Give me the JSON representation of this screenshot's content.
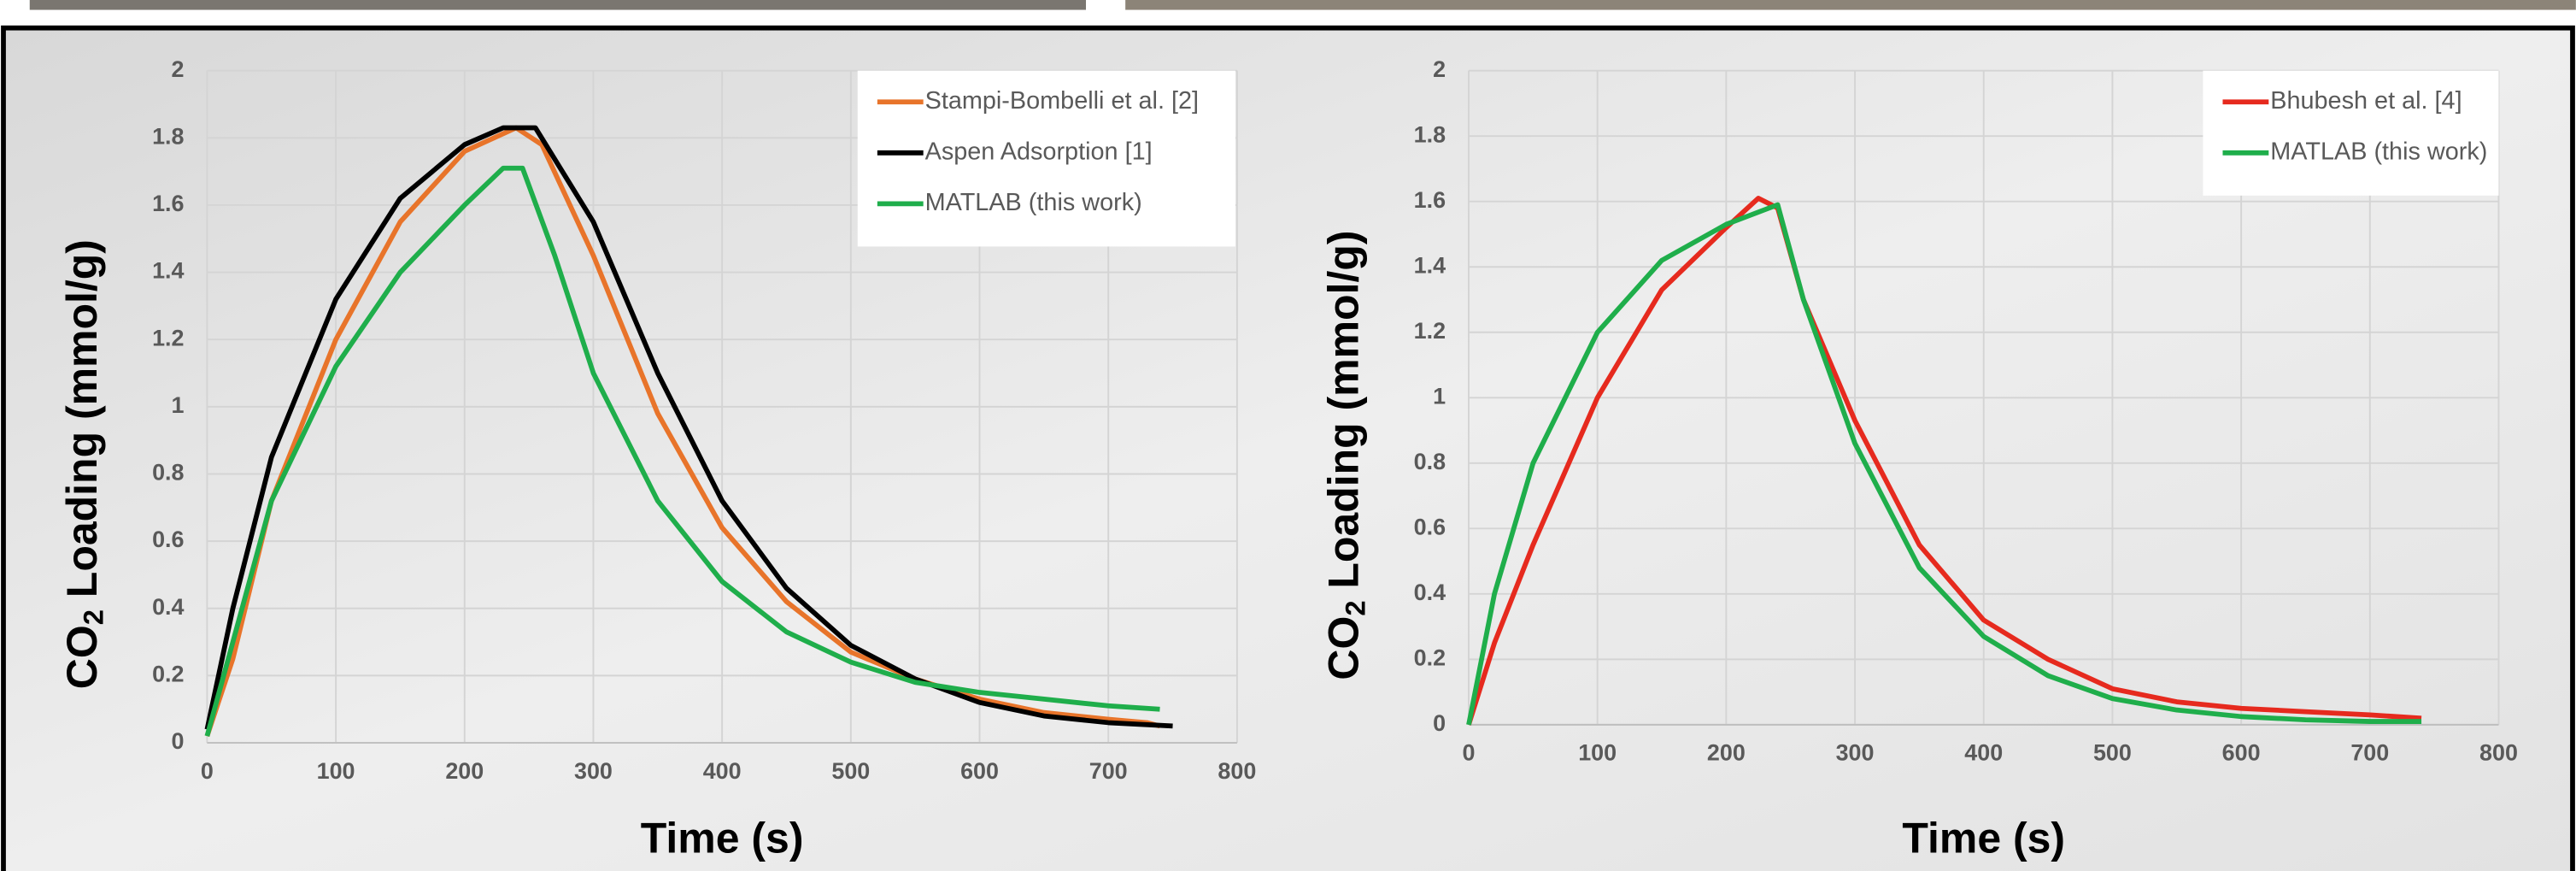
{
  "chart_data": [
    {
      "type": "line",
      "xlabel": "Time (s)",
      "ylabel": [
        "CO",
        "2",
        " Loading (mmol/g)"
      ],
      "xlim": [
        0,
        800
      ],
      "xticks": [
        0,
        100,
        200,
        300,
        400,
        500,
        600,
        700,
        800
      ],
      "ylim": [
        0,
        2
      ],
      "yticks": [
        0,
        0.2,
        0.4,
        0.6,
        0.8,
        1,
        1.2,
        1.4,
        1.6,
        1.8,
        2
      ],
      "grid": true,
      "legend": "top-right",
      "series": [
        {
          "name": "Stampi-Bombelli et al. [2]",
          "color": "#e8742a",
          "x": [
            0,
            20,
            50,
            100,
            150,
            200,
            240,
            260,
            300,
            350,
            400,
            450,
            500,
            550,
            600,
            650,
            700,
            730,
            740
          ],
          "values": [
            0.02,
            0.25,
            0.72,
            1.2,
            1.55,
            1.76,
            1.83,
            1.78,
            1.45,
            0.98,
            0.64,
            0.42,
            0.27,
            0.19,
            0.13,
            0.09,
            0.07,
            0.06,
            0.05
          ]
        },
        {
          "name": "Aspen Adsorption [1]",
          "color": "#000000",
          "x": [
            0,
            20,
            50,
            100,
            150,
            200,
            230,
            255,
            300,
            350,
            400,
            450,
            500,
            550,
            600,
            650,
            700,
            750
          ],
          "values": [
            0.04,
            0.4,
            0.85,
            1.32,
            1.62,
            1.78,
            1.83,
            1.83,
            1.55,
            1.1,
            0.72,
            0.46,
            0.29,
            0.19,
            0.12,
            0.08,
            0.06,
            0.05
          ]
        },
        {
          "name": "MATLAB (this work)",
          "color": "#1fae4b",
          "x": [
            0,
            20,
            50,
            100,
            150,
            200,
            230,
            245,
            270,
            300,
            350,
            400,
            450,
            500,
            550,
            600,
            650,
            700,
            740
          ],
          "values": [
            0.02,
            0.3,
            0.72,
            1.12,
            1.4,
            1.6,
            1.71,
            1.71,
            1.45,
            1.1,
            0.72,
            0.48,
            0.33,
            0.24,
            0.18,
            0.15,
            0.13,
            0.11,
            0.1
          ]
        }
      ]
    },
    {
      "type": "line",
      "xlabel": "Time (s)",
      "ylabel": [
        "CO",
        "2",
        " Loading (mmol/g)"
      ],
      "xlim": [
        0,
        800
      ],
      "xticks": [
        0,
        100,
        200,
        300,
        400,
        500,
        600,
        700,
        800
      ],
      "ylim": [
        0,
        2
      ],
      "yticks": [
        0,
        0.2,
        0.4,
        0.6,
        0.8,
        1,
        1.2,
        1.4,
        1.6,
        1.8,
        2
      ],
      "grid": true,
      "legend": "top-right",
      "series": [
        {
          "name": "Bhubesh et al. [4]",
          "color": "#e62a1e",
          "x": [
            0,
            20,
            50,
            100,
            150,
            200,
            225,
            240,
            260,
            300,
            350,
            400,
            450,
            500,
            550,
            600,
            650,
            700,
            740
          ],
          "values": [
            0,
            0.25,
            0.55,
            1.0,
            1.33,
            1.52,
            1.61,
            1.58,
            1.3,
            0.93,
            0.55,
            0.32,
            0.2,
            0.11,
            0.07,
            0.05,
            0.04,
            0.03,
            0.02
          ]
        },
        {
          "name": "MATLAB (this work)",
          "color": "#1fae4b",
          "x": [
            0,
            20,
            50,
            100,
            150,
            200,
            240,
            260,
            300,
            350,
            400,
            450,
            500,
            550,
            600,
            650,
            700,
            740
          ],
          "values": [
            0,
            0.4,
            0.8,
            1.2,
            1.42,
            1.53,
            1.59,
            1.3,
            0.86,
            0.48,
            0.27,
            0.15,
            0.08,
            0.045,
            0.025,
            0.015,
            0.01,
            0.01
          ]
        }
      ]
    }
  ]
}
